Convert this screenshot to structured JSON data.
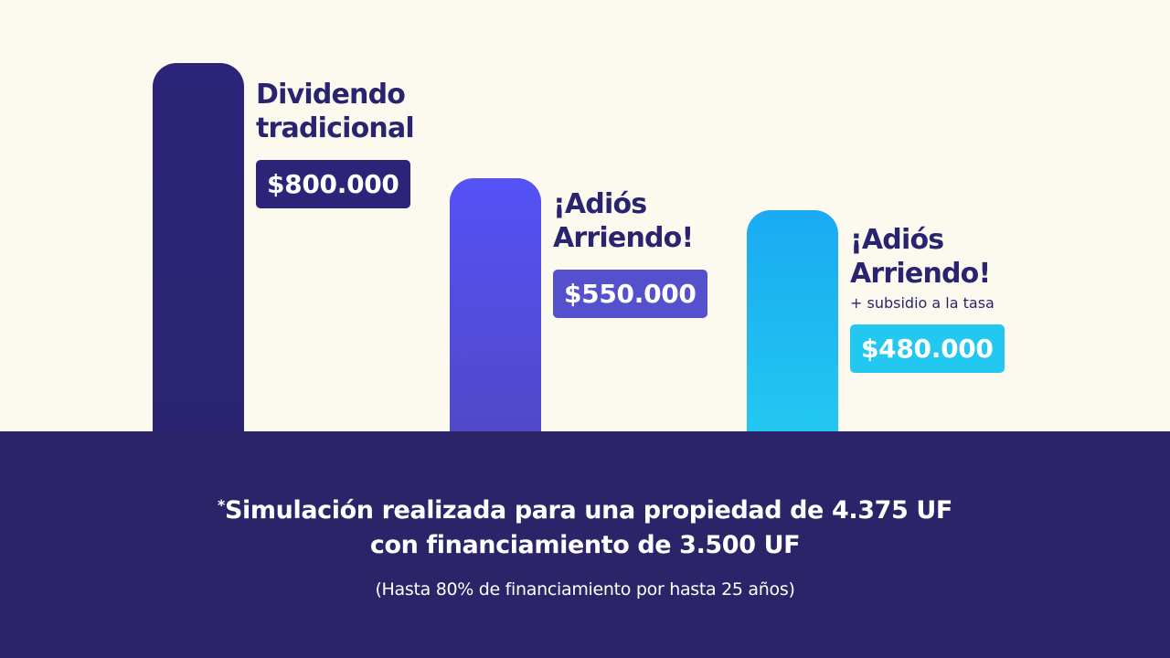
{
  "chart_data": {
    "type": "bar",
    "categories": [
      "Dividendo tradicional",
      "¡Adiós Arriendo!",
      "¡Adiós Arriendo! + subsidio a la tasa"
    ],
    "values": [
      800000,
      550000,
      480000
    ],
    "value_labels": [
      "$800.000",
      "$550.000",
      "$480.000"
    ],
    "bars": [
      {
        "title_lines": [
          "Dividendo",
          "tradicional"
        ],
        "note": "",
        "value_label": "$800.000",
        "bar_color": "#2b2478",
        "bar_color_bottom": "#2a2470",
        "badge_color": "#2b2478"
      },
      {
        "title_lines": [
          "¡Adiós",
          "Arriendo!"
        ],
        "note": "",
        "value_label": "$550.000",
        "bar_color": "#5552f7",
        "bar_color_bottom": "#5049c8",
        "badge_color": "#5550cc"
      },
      {
        "title_lines": [
          "¡Adiós",
          "Arriendo!"
        ],
        "note": "+ subsidio a la tasa",
        "value_label": "$480.000",
        "bar_color": "#1aaaf2",
        "bar_color_bottom": "#22c8f0",
        "badge_color": "#22c8f0"
      }
    ]
  },
  "footnote": {
    "asterisk": "*",
    "line1": "Simulación realizada para una propiedad de 4.375 UF",
    "line2": "con financiamiento de 3.500 UF",
    "sub": "(Hasta 80% de financiamiento por hasta 25 años)"
  },
  "colors": {
    "background": "#fcf9ef",
    "footer": "#2c2468",
    "title_text": "#2a2470"
  }
}
